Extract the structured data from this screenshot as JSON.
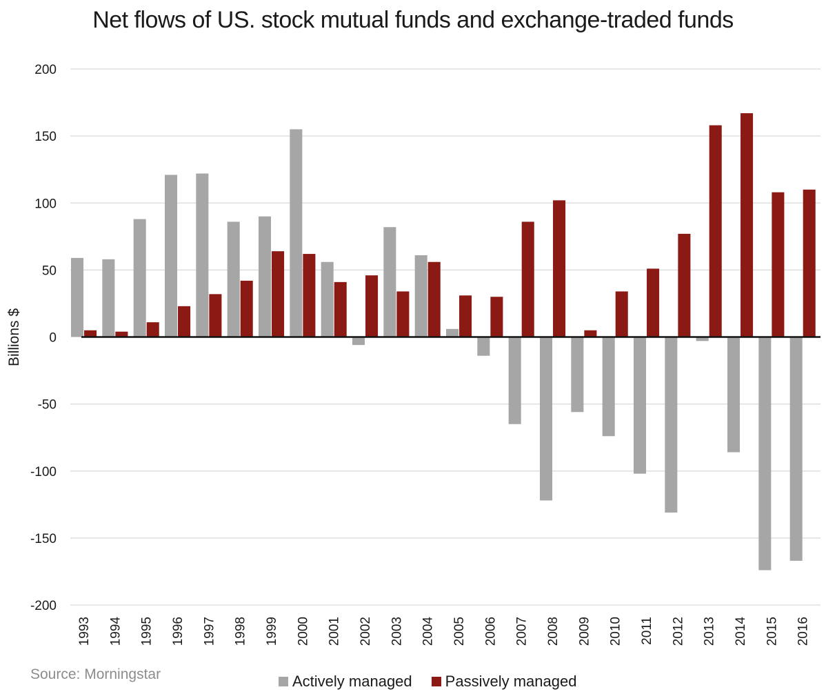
{
  "colors": {
    "active": "#a6a6a6",
    "passive": "#8b1a14",
    "grid": "#d9d9d9",
    "zero": "#111111"
  },
  "chart_data": {
    "type": "bar",
    "title": "Net flows of US. stock mutual funds and exchange-traded funds",
    "ylabel": "Billions $",
    "xlabel": "",
    "ylim": [
      -200,
      200
    ],
    "yticks": [
      200,
      150,
      100,
      50,
      0,
      -50,
      -100,
      -150,
      -200
    ],
    "grid": true,
    "legend_placement": "bottom",
    "source": "Source: Morningstar",
    "categories": [
      "1993",
      "1994",
      "1995",
      "1996",
      "1997",
      "1998",
      "1999",
      "2000",
      "2001",
      "2002",
      "2003",
      "2004",
      "2005",
      "2006",
      "2007",
      "2008",
      "2009",
      "2010",
      "2011",
      "2012",
      "2013",
      "2014",
      "2015",
      "2016"
    ],
    "series": [
      {
        "name": "Actively managed",
        "values": [
          59,
          58,
          88,
          121,
          122,
          86,
          90,
          155,
          56,
          -6,
          82,
          61,
          6,
          -14,
          -65,
          -122,
          -56,
          -74,
          -102,
          -131,
          -3,
          -86,
          -174,
          -167
        ]
      },
      {
        "name": "Passively managed",
        "values": [
          5,
          4,
          11,
          23,
          32,
          42,
          64,
          62,
          41,
          46,
          34,
          56,
          31,
          30,
          86,
          102,
          5,
          34,
          51,
          77,
          158,
          167,
          108,
          110
        ]
      }
    ]
  }
}
